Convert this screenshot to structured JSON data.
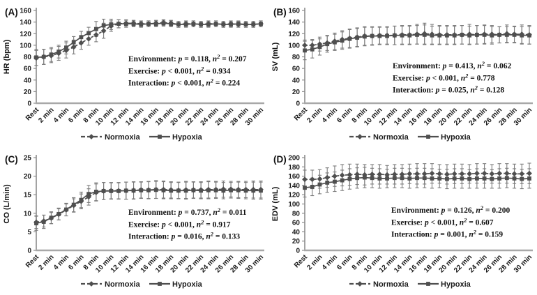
{
  "figure": {
    "background": "#ffffff",
    "colors": {
      "series": "#4f4f4f",
      "error_bar": "#7b7b7b",
      "x_axis": "#a8a8a8",
      "y_axis": "#8c8c8c",
      "text": "#1a1a1a"
    }
  },
  "categories": [
    "Rest",
    "2 min",
    "4 min",
    "6 min",
    "8 min",
    "10 min",
    "12 min",
    "14 min",
    "16 min",
    "18 min",
    "20 min",
    "22 min",
    "24 min",
    "26 min",
    "28 min",
    "30 min"
  ],
  "chart_data": [
    {
      "panel_label": "(A)",
      "type": "line",
      "ylabel": "HR (bpm)",
      "ylim": [
        0,
        160
      ],
      "ytick_step": 20,
      "x_points": 31,
      "legend_position": "bottom",
      "grid": false,
      "stats": [
        {
          "factor": "Environment:",
          "p": "= 0.118,",
          "n2": "= 0.207"
        },
        {
          "factor": "Exercise:",
          "p": "< 0.001,",
          "n2": "= 0.934"
        },
        {
          "factor": "Interaction:",
          "p": "< 0.001,",
          "n2": "= 0.224"
        }
      ],
      "layout": {
        "stats_x": 184,
        "stats_y": 88
      },
      "series": [
        {
          "name": "Normoxia",
          "marker": "diamond",
          "line": "dashed",
          "values": [
            78,
            80,
            82,
            86,
            91,
            97,
            104,
            111,
            118,
            125,
            133,
            137,
            138,
            138,
            137,
            137,
            138,
            139,
            138,
            136,
            137,
            137,
            136,
            137,
            137,
            136,
            137,
            136,
            136,
            136,
            137
          ],
          "err": [
            13,
            13,
            12,
            12,
            13,
            12,
            11,
            11,
            12,
            13,
            9,
            7,
            6,
            5,
            5,
            5,
            5,
            5,
            5,
            5,
            5,
            5,
            5,
            5,
            5,
            5,
            5,
            5,
            5,
            5,
            5
          ]
        },
        {
          "name": "Hypoxia",
          "marker": "square",
          "line": "solid",
          "values": [
            79,
            80,
            84,
            89,
            96,
            105,
            114,
            121,
            128,
            134,
            136,
            137,
            137,
            137,
            136,
            137,
            137,
            138,
            137,
            136,
            136,
            137,
            136,
            136,
            137,
            136,
            136,
            137,
            136,
            136,
            137
          ],
          "err": [
            14,
            13,
            12,
            11,
            11,
            10,
            10,
            10,
            13,
            11,
            9,
            7,
            6,
            5,
            5,
            5,
            5,
            5,
            5,
            5,
            5,
            5,
            5,
            5,
            5,
            5,
            5,
            5,
            5,
            5,
            5
          ]
        }
      ]
    },
    {
      "panel_label": "(B)",
      "type": "line",
      "ylabel": "SV (mL)",
      "ylim": [
        0,
        160
      ],
      "ytick_step": 20,
      "x_points": 31,
      "legend_position": "bottom",
      "grid": false,
      "stats": [
        {
          "factor": "Environment:",
          "p": "= 0.413,",
          "n2": "= 0.062"
        },
        {
          "factor": "Exercise:",
          "p": "< 0.001,",
          "n2": "= 0.778"
        },
        {
          "factor": "Interaction:",
          "p": "= 0.025,",
          "n2": "= 0.128"
        }
      ],
      "layout": {
        "stats_x": 178,
        "stats_y": 98
      },
      "series": [
        {
          "name": "Normoxia",
          "marker": "diamond",
          "line": "dashed",
          "values": [
            100,
            100,
            102,
            104,
            107,
            110,
            112,
            114,
            116,
            116,
            117,
            117,
            117,
            118,
            118,
            119,
            120,
            119,
            118,
            118,
            118,
            118,
            119,
            118,
            119,
            119,
            118,
            120,
            119,
            119,
            118
          ],
          "err": [
            9,
            10,
            12,
            13,
            14,
            15,
            16,
            16,
            16,
            15,
            15,
            15,
            16,
            16,
            16,
            17,
            18,
            17,
            16,
            16,
            16,
            16,
            17,
            16,
            16,
            15,
            14,
            15,
            14,
            16,
            16
          ]
        },
        {
          "name": "Hypoxia",
          "marker": "square",
          "line": "solid",
          "values": [
            91,
            93,
            97,
            102,
            105,
            108,
            111,
            113,
            115,
            116,
            116,
            116,
            117,
            117,
            117,
            118,
            118,
            117,
            117,
            117,
            117,
            118,
            117,
            118,
            118,
            117,
            118,
            118,
            118,
            117,
            117
          ],
          "err": [
            16,
            15,
            14,
            14,
            14,
            15,
            16,
            16,
            16,
            16,
            15,
            15,
            16,
            16,
            16,
            16,
            17,
            16,
            16,
            16,
            16,
            16,
            16,
            16,
            16,
            15,
            14,
            14,
            14,
            15,
            15
          ]
        }
      ]
    },
    {
      "panel_label": "(C)",
      "type": "line",
      "ylabel": "CO (L/min)",
      "ylim": [
        0,
        25
      ],
      "ytick_step": 5,
      "x_points": 31,
      "legend_position": "bottom",
      "grid": false,
      "stats": [
        {
          "factor": "Environment:",
          "p": "= 0.737,",
          "n2": "= 0.011"
        },
        {
          "factor": "Exercise:",
          "p": "< 0.001,",
          "n2": "= 0.917"
        },
        {
          "factor": "Interaction:",
          "p": "= 0.016,",
          "n2": "= 0.133"
        }
      ],
      "layout": {
        "stats_x": 184,
        "stats_y": 97
      },
      "series": [
        {
          "name": "Normoxia",
          "marker": "diamond",
          "line": "dashed",
          "values": [
            7.6,
            7.9,
            8.7,
            9.7,
            10.9,
            12.1,
            13.2,
            14.4,
            15.6,
            16.0,
            16.1,
            16.1,
            16.1,
            16.2,
            16.3,
            16.3,
            16.4,
            16.4,
            16.3,
            16.2,
            16.3,
            16.3,
            16.3,
            16.4,
            16.4,
            16.5,
            16.5,
            16.4,
            16.4,
            16.4,
            16.4
          ],
          "err": [
            1.7,
            1.6,
            1.5,
            1.5,
            1.6,
            1.8,
            2.0,
            2.2,
            2.3,
            2.3,
            2.2,
            2.2,
            2.3,
            2.3,
            2.2,
            2.3,
            2.4,
            2.3,
            2.2,
            2.2,
            2.3,
            2.2,
            2.2,
            2.3,
            2.2,
            2.2,
            2.1,
            2.2,
            2.2,
            2.3,
            2.3
          ]
        },
        {
          "name": "Hypoxia",
          "marker": "square",
          "line": "solid",
          "values": [
            7.3,
            7.7,
            8.8,
            9.8,
            11.0,
            12.3,
            13.6,
            15.2,
            15.8,
            16.0,
            16.0,
            16.0,
            16.1,
            16.1,
            16.2,
            16.2,
            16.3,
            16.2,
            16.1,
            16.1,
            16.1,
            16.2,
            16.1,
            16.2,
            16.2,
            16.1,
            16.2,
            16.2,
            16.1,
            16.1,
            16.1
          ],
          "err": [
            1.9,
            1.8,
            1.6,
            1.6,
            1.7,
            1.9,
            2.1,
            2.3,
            2.4,
            2.3,
            2.2,
            2.2,
            2.3,
            2.3,
            2.2,
            2.3,
            2.3,
            2.3,
            2.2,
            2.2,
            2.3,
            2.2,
            2.2,
            2.3,
            2.2,
            2.2,
            2.1,
            2.2,
            2.2,
            2.3,
            2.3
          ]
        }
      ]
    },
    {
      "panel_label": "(D)",
      "type": "line",
      "ylabel": "EDV (mL)",
      "ylim": [
        0,
        200
      ],
      "ytick_step": 20,
      "x_points": 31,
      "legend_position": "bottom",
      "grid": false,
      "stats": [
        {
          "factor": "Environment:",
          "p": "= 0.126,",
          "n2": "= 0.200"
        },
        {
          "factor": "Exercise:",
          "p": "< 0.001,",
          "n2": "= 0.607"
        },
        {
          "factor": "Interaction:",
          "p": "= 0.001,",
          "n2": "= 0.159"
        }
      ],
      "layout": {
        "stats_x": 176,
        "stats_y": 94
      },
      "series": [
        {
          "name": "Normoxia",
          "marker": "diamond",
          "line": "dashed",
          "values": [
            153,
            153,
            154,
            157,
            160,
            162,
            163,
            164,
            163,
            164,
            164,
            163,
            164,
            164,
            165,
            165,
            165,
            166,
            165,
            164,
            165,
            165,
            165,
            166,
            166,
            165,
            166,
            166,
            165,
            165,
            166
          ],
          "err": [
            20,
            20,
            20,
            21,
            22,
            23,
            23,
            22,
            22,
            21,
            21,
            20,
            21,
            21,
            21,
            22,
            22,
            21,
            20,
            21,
            21,
            21,
            20,
            21,
            21,
            20,
            21,
            21,
            21,
            21,
            22
          ]
        },
        {
          "name": "Hypoxia",
          "marker": "square",
          "line": "solid",
          "values": [
            135,
            137,
            142,
            146,
            148,
            151,
            154,
            156,
            157,
            156,
            155,
            155,
            156,
            156,
            155,
            156,
            156,
            155,
            155,
            154,
            155,
            155,
            154,
            155,
            155,
            154,
            155,
            156,
            155,
            154,
            155
          ],
          "err": [
            20,
            19,
            20,
            21,
            21,
            22,
            22,
            22,
            22,
            21,
            21,
            20,
            21,
            21,
            21,
            21,
            21,
            21,
            20,
            21,
            21,
            21,
            20,
            21,
            21,
            20,
            21,
            21,
            21,
            21,
            21
          ]
        }
      ]
    }
  ]
}
